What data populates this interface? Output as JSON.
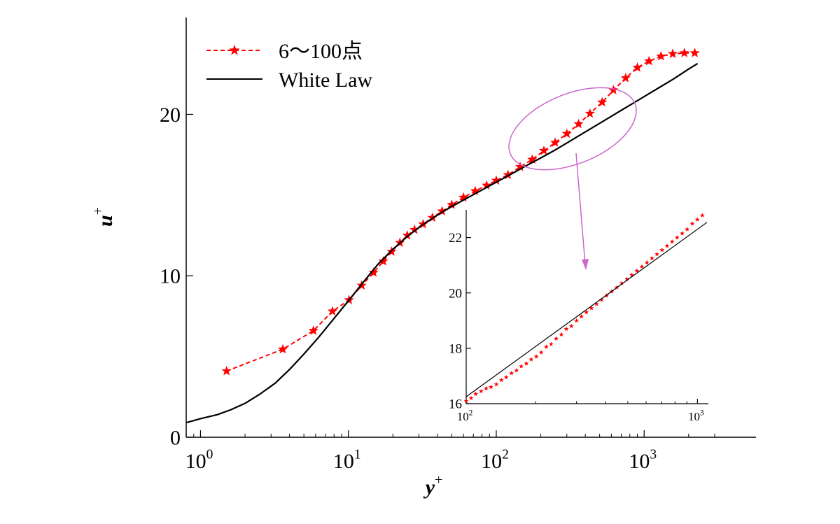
{
  "chart_data": [
    {
      "id": "main",
      "type": "line",
      "x_scale": "log",
      "xlabel": "y",
      "xlabel_sup": "+",
      "ylabel": "u",
      "ylabel_sup": "+",
      "xlim": [
        0.8,
        3000
      ],
      "ylim": [
        0,
        26
      ],
      "y_ticks": [
        {
          "value": 0,
          "label": "0"
        },
        {
          "value": 10,
          "label": "10"
        },
        {
          "value": 20,
          "label": "20"
        }
      ],
      "x_ticks": [
        {
          "value": 1,
          "base": "10",
          "exp": "0"
        },
        {
          "value": 10,
          "base": "10",
          "exp": "1"
        },
        {
          "value": 100,
          "base": "10",
          "exp": "2"
        },
        {
          "value": 1000,
          "base": "10",
          "exp": "3"
        }
      ],
      "grid": false,
      "legend_position": "top-left",
      "series": [
        {
          "name": "6～100点",
          "color": "#ff0000",
          "style": "dashed-star",
          "x": [
            1.5,
            3.6,
            5.8,
            7.8,
            10.1,
            12.3,
            14.8,
            17.2,
            19.6,
            22.3,
            25.0,
            28.0,
            32.0,
            37.0,
            43.0,
            50.0,
            60.0,
            72.0,
            86.0,
            100.0,
            120.0,
            145.0,
            175.0,
            210.0,
            250.0,
            300.0,
            360.0,
            430.0,
            520.0,
            620.0,
            750.0,
            900.0,
            1080.0,
            1300.0,
            1560.0,
            1870.0,
            2200.0
          ],
          "y": [
            4.1,
            5.45,
            6.6,
            7.8,
            8.5,
            9.4,
            10.2,
            10.9,
            11.5,
            12.05,
            12.5,
            12.85,
            13.2,
            13.6,
            14.0,
            14.4,
            14.85,
            15.25,
            15.6,
            15.9,
            16.25,
            16.75,
            17.2,
            17.75,
            18.25,
            18.8,
            19.4,
            20.05,
            20.75,
            21.5,
            22.25,
            22.9,
            23.3,
            23.6,
            23.75,
            23.8,
            23.8
          ]
        },
        {
          "name": "White Law",
          "color": "#000000",
          "style": "solid",
          "x": [
            0.8,
            1.0,
            1.3,
            1.6,
            2.0,
            2.5,
            3.2,
            4.0,
            5.0,
            6.3,
            7.9,
            10.0,
            12.6,
            15.8,
            20.0,
            25.1,
            31.6,
            39.8,
            50.1,
            63.1,
            79.4,
            100.0,
            126.0,
            158.0,
            200.0,
            251.0,
            316.0,
            398.0,
            501.0,
            631.0,
            794.0,
            1000.0,
            1259.0,
            1585.0,
            1995.0,
            2300.0
          ],
          "y": [
            0.9,
            1.15,
            1.4,
            1.7,
            2.1,
            2.65,
            3.35,
            4.2,
            5.15,
            6.2,
            7.3,
            8.45,
            9.6,
            10.7,
            11.65,
            12.45,
            13.15,
            13.75,
            14.3,
            14.8,
            15.3,
            15.8,
            16.3,
            16.8,
            17.3,
            17.8,
            18.35,
            18.9,
            19.45,
            20.0,
            20.55,
            21.1,
            21.65,
            22.2,
            22.8,
            23.15
          ]
        }
      ]
    },
    {
      "id": "inset",
      "type": "scatter",
      "x_scale": "log",
      "xlim": [
        100,
        1100
      ],
      "ylim": [
        16,
        23
      ],
      "y_ticks": [
        {
          "value": 16,
          "label": "16"
        },
        {
          "value": 18,
          "label": "18"
        },
        {
          "value": 20,
          "label": "20"
        },
        {
          "value": 22,
          "label": "22"
        }
      ],
      "x_ticks": [
        {
          "value": 100,
          "base": "10",
          "exp": "2"
        },
        {
          "value": 1000,
          "base": "10",
          "exp": "3"
        }
      ],
      "series": [
        {
          "name": "",
          "color": "#ff0000",
          "style": "star-markers",
          "x": [
            100,
            105,
            110,
            116,
            122,
            128,
            135,
            142,
            149,
            157,
            165,
            173,
            182,
            191,
            201,
            211,
            222,
            233,
            245,
            258,
            271,
            285,
            300,
            315,
            331,
            348,
            366,
            385,
            405,
            426,
            448,
            471,
            495,
            520,
            547,
            575,
            605,
            636,
            668,
            703,
            739,
            777,
            817,
            859,
            903,
            950,
            999,
            1050
          ],
          "y": [
            16.1,
            16.2,
            16.35,
            16.45,
            16.55,
            16.6,
            16.7,
            16.85,
            16.95,
            17.1,
            17.2,
            17.35,
            17.45,
            17.6,
            17.7,
            17.85,
            18.05,
            18.15,
            18.35,
            18.5,
            18.7,
            18.8,
            19.0,
            19.15,
            19.3,
            19.45,
            19.6,
            19.75,
            19.9,
            20.05,
            20.2,
            20.35,
            20.5,
            20.65,
            20.8,
            20.95,
            21.1,
            21.25,
            21.4,
            21.55,
            21.7,
            21.85,
            22.0,
            22.15,
            22.3,
            22.5,
            22.65,
            22.8
          ]
        },
        {
          "name": "",
          "color": "#000000",
          "style": "solid",
          "x": [
            100,
            1100
          ],
          "y": [
            16.25,
            22.55
          ]
        }
      ]
    }
  ],
  "annotation": {
    "ellipse_color": "#cc66cc",
    "arrow_color": "#cc66cc"
  }
}
